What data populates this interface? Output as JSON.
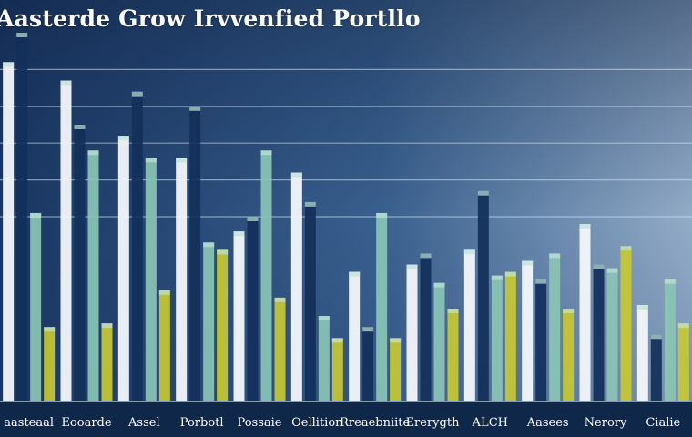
{
  "title": "Aasterde Grow Irvvenfied Portllo",
  "colors": {
    "background_top": "#1c3a66",
    "background_right": "#9fb8d2",
    "axis_band": "#0f2748",
    "white": "#f4f7fb",
    "navy": "#12305a",
    "teal": "#8ac4b4",
    "yellow": "#c8c832",
    "green": "#8cc05a",
    "blue": "#5d93c6"
  },
  "chart_data": {
    "type": "bar",
    "title": "Aasterde Grow Irvvenfied Portllo",
    "xlabel": "",
    "ylabel": "",
    "categories": [
      "aasteaal",
      "Eooarde",
      "Assel",
      "Porbotl",
      "Possaie",
      "Oellition",
      "Rreaebniite",
      "Ererygth",
      "ALCH",
      "Aasees",
      "Nerory",
      "Cialie"
    ],
    "ylim": [
      0,
      100
    ],
    "grid": true,
    "legend": "none",
    "series": [
      {
        "values": [
          92,
          87,
          72,
          66,
          46,
          62,
          35,
          37,
          41,
          38,
          48,
          26
        ]
      },
      {
        "values": [
          100,
          75,
          84,
          80,
          50,
          54,
          20,
          40,
          57,
          33,
          37,
          18
        ]
      },
      {
        "values": [
          51,
          68,
          66,
          43,
          68,
          23,
          51,
          32,
          34,
          40,
          36,
          33
        ]
      },
      {
        "values": [
          20,
          21,
          30,
          41,
          28,
          17,
          17,
          25,
          35,
          25,
          42,
          21
        ]
      }
    ]
  }
}
